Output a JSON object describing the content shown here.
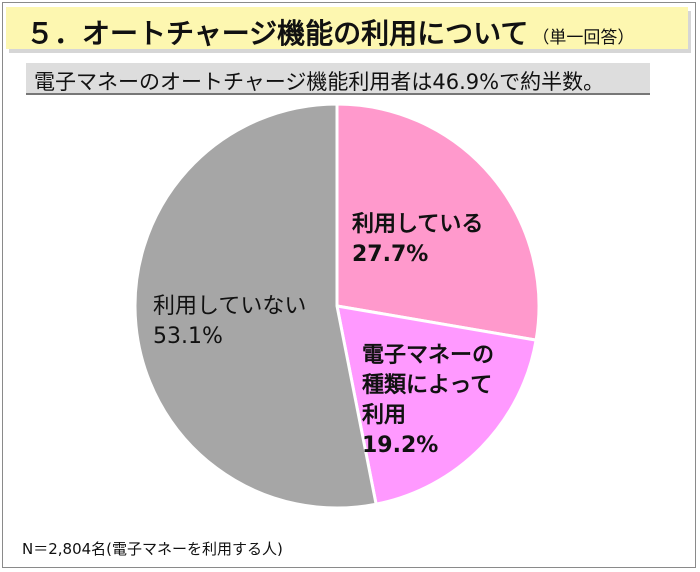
{
  "header": {
    "title": "５．オートチャージ機能の利用について",
    "title_note": "（単一回答）"
  },
  "summary": {
    "text": "電子マネーのオートチャージ機能利用者は46.9%で約半数。"
  },
  "chart_data": {
    "type": "pie",
    "title": "",
    "categories": [
      "利用している",
      "電子マネーの種類によって利用",
      "利用していない"
    ],
    "values": [
      27.7,
      19.2,
      53.1
    ],
    "unit": "%",
    "start_angle": "12 o'clock",
    "direction": "clockwise",
    "slices": [
      {
        "label_lines": [
          "利用している"
        ],
        "value_text": "27.7%",
        "value": 27.7,
        "color": "#ff99cc"
      },
      {
        "label_lines": [
          "電子マネーの",
          "種類によって",
          "利用"
        ],
        "value_text": "19.2%",
        "value": 19.2,
        "color": "#ff99ff"
      },
      {
        "label_lines": [
          "利用していない"
        ],
        "value_text": "53.1%",
        "value": 53.1,
        "color": "#a6a6a6"
      }
    ]
  },
  "footer": {
    "note": "N＝2,804名(電子マネーを利用する人)"
  },
  "colors": {
    "title_band": "#fdf7b0",
    "subtitle_band": "#dddddd",
    "slice_border": "#ffffff"
  }
}
